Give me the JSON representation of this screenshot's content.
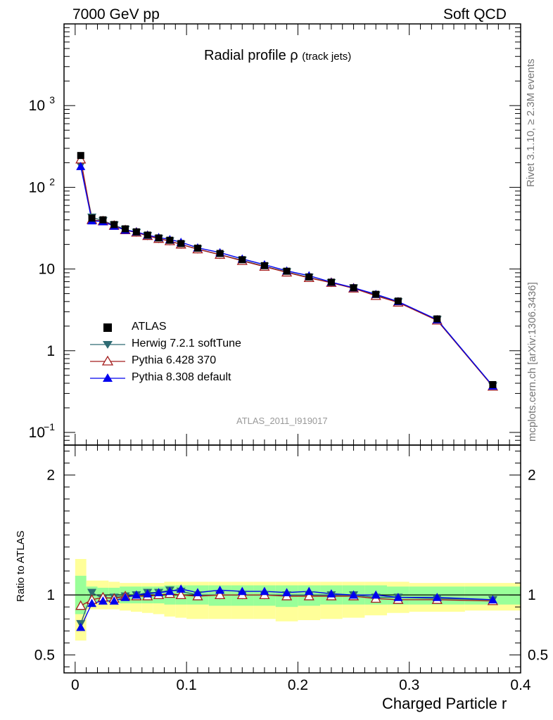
{
  "header": {
    "left": "7000 GeV pp",
    "right": "Soft QCD"
  },
  "side_text": {
    "top": "Rivet 3.1.10, ≥ 2.3M events",
    "bottom": "mcplots.cern.ch [arXiv:1306.3436]"
  },
  "plot_title": {
    "main": "Radial profile ρ",
    "sub": "(track jets)"
  },
  "watermark": "ATLAS_2011_I919017",
  "colors": {
    "atlas": "#000000",
    "herwig": "#2e6b73",
    "pythia6": "#a31d1d",
    "pythia8": "#0000ee",
    "band_inner": "#99ff99",
    "band_outer": "#ffff99"
  },
  "chart_data": [
    {
      "type": "scatter",
      "title": "Radial profile ρ (track jets)",
      "xlabel": "Charged Particle r",
      "ylabel": "",
      "xlim": [
        -0.01,
        0.4
      ],
      "ylim": [
        0.07,
        10000
      ],
      "yscale": "log",
      "y_tick_labels": [
        "10−1",
        "1",
        "10",
        "10²",
        "10³"
      ],
      "x": [
        0.005,
        0.015,
        0.025,
        0.035,
        0.045,
        0.055,
        0.065,
        0.075,
        0.085,
        0.095,
        0.11,
        0.13,
        0.15,
        0.17,
        0.19,
        0.21,
        0.23,
        0.25,
        0.27,
        0.29,
        0.325,
        0.375
      ],
      "series": [
        {
          "name": "ATLAS",
          "style": "data",
          "values": [
            245,
            42,
            40,
            35,
            31,
            28.5,
            26,
            24,
            22.5,
            20.5,
            18,
            15.5,
            13,
            11,
            9.4,
            8,
            6.9,
            5.9,
            4.9,
            4.05,
            2.45,
            0.385
          ]
        },
        {
          "name": "Herwig 7.2.1 softTune",
          "style": "mc",
          "values": [
            185,
            43,
            39,
            34.5,
            30.5,
            28,
            25.5,
            23.5,
            22,
            20,
            17.5,
            15,
            12.8,
            10.8,
            9.2,
            7.9,
            6.8,
            5.85,
            4.8,
            3.95,
            2.4,
            0.37
          ]
        },
        {
          "name": "Pythia 6.428 370",
          "style": "mc",
          "values": [
            220,
            40,
            38.5,
            34,
            30,
            28,
            25.5,
            23.5,
            22,
            20,
            17.5,
            15,
            12.6,
            10.7,
            9.1,
            7.8,
            6.8,
            5.8,
            4.7,
            3.9,
            2.35,
            0.365
          ]
        },
        {
          "name": "Pythia 8.308 default",
          "style": "mc",
          "values": [
            180,
            39,
            38,
            33.5,
            30,
            28.5,
            26,
            24.3,
            23,
            21.3,
            18.2,
            15.9,
            13.3,
            11.3,
            9.5,
            8.3,
            6.9,
            5.9,
            4.9,
            4.0,
            2.4,
            0.37
          ]
        }
      ]
    },
    {
      "type": "line",
      "title": "",
      "xlabel": "Charged Particle r",
      "ylabel": "Ratio to ATLAS",
      "xlim": [
        -0.01,
        0.4
      ],
      "ylim": [
        0.35,
        2.25
      ],
      "y_tick_labels": [
        "0.5",
        "1",
        "2"
      ],
      "x": [
        0.005,
        0.015,
        0.025,
        0.035,
        0.045,
        0.055,
        0.065,
        0.075,
        0.085,
        0.095,
        0.11,
        0.13,
        0.15,
        0.17,
        0.19,
        0.21,
        0.23,
        0.25,
        0.27,
        0.29,
        0.325,
        0.375
      ],
      "bins": [
        [
          0.0,
          0.01
        ],
        [
          0.01,
          0.02
        ],
        [
          0.02,
          0.03
        ],
        [
          0.03,
          0.04
        ],
        [
          0.04,
          0.05
        ],
        [
          0.05,
          0.06
        ],
        [
          0.06,
          0.07
        ],
        [
          0.07,
          0.08
        ],
        [
          0.08,
          0.09
        ],
        [
          0.09,
          0.1
        ],
        [
          0.1,
          0.12
        ],
        [
          0.12,
          0.14
        ],
        [
          0.14,
          0.16
        ],
        [
          0.16,
          0.18
        ],
        [
          0.18,
          0.2
        ],
        [
          0.2,
          0.22
        ],
        [
          0.22,
          0.24
        ],
        [
          0.24,
          0.26
        ],
        [
          0.26,
          0.28
        ],
        [
          0.28,
          0.3
        ],
        [
          0.3,
          0.35
        ],
        [
          0.35,
          0.4
        ]
      ],
      "band_inner": [
        [
          0.84,
          1.16
        ],
        [
          0.93,
          1.07
        ],
        [
          0.94,
          1.06
        ],
        [
          0.94,
          1.06
        ],
        [
          0.93,
          1.07
        ],
        [
          0.93,
          1.07
        ],
        [
          0.93,
          1.07
        ],
        [
          0.93,
          1.07
        ],
        [
          0.92,
          1.08
        ],
        [
          0.92,
          1.08
        ],
        [
          0.92,
          1.08
        ],
        [
          0.91,
          1.08
        ],
        [
          0.91,
          1.08
        ],
        [
          0.91,
          1.08
        ],
        [
          0.9,
          1.08
        ],
        [
          0.91,
          1.08
        ],
        [
          0.92,
          1.08
        ],
        [
          0.92,
          1.08
        ],
        [
          0.92,
          1.08
        ],
        [
          0.92,
          1.07
        ],
        [
          0.92,
          1.07
        ],
        [
          0.92,
          1.07
        ]
      ],
      "band_outer": [
        [
          0.62,
          1.3
        ],
        [
          0.88,
          1.12
        ],
        [
          0.88,
          1.12
        ],
        [
          0.88,
          1.11
        ],
        [
          0.87,
          1.1
        ],
        [
          0.86,
          1.1
        ],
        [
          0.85,
          1.1
        ],
        [
          0.84,
          1.1
        ],
        [
          0.82,
          1.11
        ],
        [
          0.81,
          1.11
        ],
        [
          0.8,
          1.11
        ],
        [
          0.8,
          1.11
        ],
        [
          0.8,
          1.11
        ],
        [
          0.8,
          1.11
        ],
        [
          0.78,
          1.11
        ],
        [
          0.79,
          1.11
        ],
        [
          0.8,
          1.11
        ],
        [
          0.81,
          1.11
        ],
        [
          0.83,
          1.11
        ],
        [
          0.85,
          1.11
        ],
        [
          0.86,
          1.1
        ],
        [
          0.87,
          1.1
        ]
      ],
      "series": [
        {
          "name": "Herwig 7.2.1 softTune",
          "values": [
            0.76,
            1.02,
            0.97,
            0.98,
            0.99,
            1.0,
            1.02,
            1.02,
            1.04,
            1.03,
            1.0,
            1.0,
            1.0,
            1.0,
            1.0,
            1.0,
            1.0,
            1.0,
            0.98,
            0.98,
            0.97,
            0.96
          ]
        },
        {
          "name": "Pythia 6.428 370",
          "values": [
            0.91,
            0.96,
            0.98,
            0.97,
            0.99,
            0.99,
            0.99,
            1.0,
            1.01,
            1.0,
            0.99,
            1.0,
            1.0,
            1.0,
            0.99,
            0.99,
            0.99,
            0.99,
            0.97,
            0.96,
            0.96,
            0.95
          ]
        },
        {
          "name": "Pythia 8.308 default",
          "values": [
            0.73,
            0.93,
            0.95,
            0.95,
            0.98,
            1.0,
            1.01,
            1.02,
            1.03,
            1.05,
            1.02,
            1.04,
            1.03,
            1.03,
            1.02,
            1.03,
            1.01,
            1.0,
            1.0,
            0.98,
            0.98,
            0.96
          ]
        }
      ]
    }
  ],
  "x_tick_labels": [
    "0",
    "0.1",
    "0.2",
    "0.3",
    "0.4"
  ],
  "legend": [
    {
      "label": "ATLAS",
      "marker": "square",
      "color": "#000000"
    },
    {
      "label": "Herwig 7.2.1 softTune",
      "marker": "triangle-down",
      "color": "#2e6b73"
    },
    {
      "label": "Pythia 6.428 370",
      "marker": "triangle-open",
      "color": "#a31d1d"
    },
    {
      "label": "Pythia 8.308 default",
      "marker": "triangle-up",
      "color": "#0000ee"
    }
  ]
}
